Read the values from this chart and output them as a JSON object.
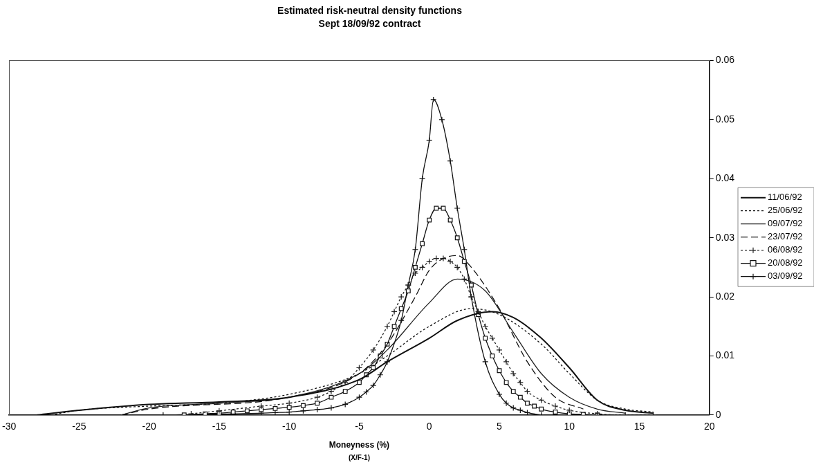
{
  "chart_data": {
    "type": "line",
    "title": "Estimated risk-neutral density functions",
    "subtitle": "Sept 18/09/92 contract",
    "xlabel": "Moneyness (%)",
    "annotations": [
      "(X/F-1)"
    ],
    "xlim": [
      -30,
      20
    ],
    "xticks": [
      -30,
      -25,
      -20,
      -15,
      -10,
      -5,
      0,
      5,
      10,
      15,
      20
    ],
    "ylim": [
      0,
      0.06
    ],
    "yticks": [
      0,
      0.01,
      0.02,
      0.03,
      0.04,
      0.05,
      0.06
    ],
    "grid": false,
    "legend": "right",
    "series": [
      {
        "name": "11/06/92",
        "color": "#111111",
        "line_style": "solid",
        "marker": "none",
        "x": [
          -28,
          -25,
          -20,
          -15,
          -10,
          -5,
          -3,
          0,
          2,
          4.5,
          6,
          8,
          10,
          12,
          14,
          16
        ],
        "values": [
          0,
          0.0008,
          0.0018,
          0.0022,
          0.003,
          0.006,
          0.009,
          0.013,
          0.016,
          0.0175,
          0.0165,
          0.013,
          0.008,
          0.0025,
          0.0008,
          0.0003
        ]
      },
      {
        "name": "25/06/92",
        "color": "#111111",
        "line_style": "dotted",
        "marker": "none",
        "x": [
          -27,
          -25,
          -20,
          -15,
          -10,
          -5,
          -3,
          0,
          3,
          5,
          8,
          10,
          12,
          14,
          16
        ],
        "values": [
          0,
          0.0008,
          0.0015,
          0.002,
          0.0035,
          0.007,
          0.01,
          0.015,
          0.018,
          0.017,
          0.012,
          0.007,
          0.0025,
          0.001,
          0.0005
        ]
      },
      {
        "name": "09/07/92",
        "color": "#222222",
        "line_style": "solid",
        "marker": "none",
        "x": [
          -22,
          -20,
          -15,
          -10,
          -5,
          -3,
          0,
          2,
          4,
          6,
          8,
          10,
          12,
          14
        ],
        "values": [
          0,
          0.0012,
          0.002,
          0.003,
          0.007,
          0.011,
          0.019,
          0.023,
          0.021,
          0.014,
          0.007,
          0.003,
          0.001,
          0.0003
        ]
      },
      {
        "name": "23/07/92",
        "color": "#111111",
        "line_style": "dashed",
        "marker": "none",
        "x": [
          -22,
          -20,
          -10,
          -5,
          -3,
          -1,
          0,
          1,
          2,
          3,
          5,
          7,
          9,
          11
        ],
        "values": [
          0,
          0.001,
          0.003,
          0.007,
          0.012,
          0.02,
          0.0245,
          0.0265,
          0.027,
          0.025,
          0.018,
          0.009,
          0.003,
          0.001
        ]
      },
      {
        "name": "06/08/92",
        "color": "#222222",
        "line_style": "dotted",
        "marker": "cross",
        "x": [
          -17,
          -15,
          -12,
          -10,
          -8,
          -7,
          -6,
          -5,
          -4,
          -3,
          -2.5,
          -2,
          -1.5,
          -1,
          -0.5,
          0,
          0.5,
          1,
          1.5,
          2,
          2.5,
          3,
          3.5,
          4,
          4.5,
          5,
          5.5,
          6,
          6.5,
          7,
          8,
          9,
          10,
          12,
          14,
          16
        ],
        "values": [
          0.0002,
          0.0007,
          0.0015,
          0.002,
          0.003,
          0.004,
          0.0055,
          0.008,
          0.011,
          0.015,
          0.0175,
          0.02,
          0.022,
          0.024,
          0.025,
          0.026,
          0.0265,
          0.0265,
          0.026,
          0.025,
          0.023,
          0.02,
          0.0175,
          0.015,
          0.013,
          0.011,
          0.009,
          0.007,
          0.0055,
          0.004,
          0.0025,
          0.0015,
          0.0008,
          0.0002,
          0,
          0
        ]
      },
      {
        "name": "20/08/92",
        "color": "#111111",
        "line_style": "solid",
        "marker": "square",
        "x": [
          -17.5,
          -16,
          -15,
          -14,
          -13,
          -12,
          -11,
          -10,
          -9,
          -8,
          -7,
          -6,
          -5,
          -4.5,
          -4,
          -3.5,
          -3,
          -2.5,
          -2,
          -1.5,
          -1,
          -0.5,
          0,
          0.5,
          1,
          1.5,
          2,
          2.5,
          3,
          3.5,
          4,
          4.5,
          5,
          5.5,
          6,
          6.5,
          7,
          7.5,
          8,
          9,
          10,
          11,
          12
        ],
        "values": [
          0,
          0.0002,
          0.0003,
          0.0005,
          0.0007,
          0.0009,
          0.0011,
          0.0013,
          0.0016,
          0.002,
          0.003,
          0.004,
          0.0055,
          0.0068,
          0.008,
          0.01,
          0.012,
          0.015,
          0.018,
          0.021,
          0.025,
          0.029,
          0.033,
          0.035,
          0.035,
          0.033,
          0.03,
          0.026,
          0.022,
          0.017,
          0.013,
          0.01,
          0.0075,
          0.0055,
          0.004,
          0.003,
          0.002,
          0.0015,
          0.001,
          0.0005,
          0.0002,
          0.0001,
          0
        ]
      },
      {
        "name": "03/09/92",
        "color": "#111111",
        "line_style": "solid",
        "marker": "cross",
        "x": [
          -19,
          -16,
          -14,
          -12,
          -11,
          -10,
          -9,
          -8,
          -7,
          -6,
          -5,
          -4.5,
          -4,
          -3.5,
          -3,
          -2,
          -1.5,
          -1,
          -0.5,
          0,
          0.3,
          0.9,
          1.5,
          2,
          2.5,
          3,
          4,
          5,
          5.5,
          6,
          6.5,
          7,
          8
        ],
        "values": [
          0,
          0.0001,
          0.0002,
          0.0003,
          0.0004,
          0.0005,
          0.0007,
          0.0009,
          0.0012,
          0.0018,
          0.003,
          0.0039,
          0.005,
          0.0068,
          0.009,
          0.016,
          0.022,
          0.028,
          0.04,
          0.0465,
          0.0534,
          0.05,
          0.043,
          0.035,
          0.028,
          0.02,
          0.009,
          0.0035,
          0.002,
          0.0012,
          0.0008,
          0.0004,
          0
        ]
      }
    ]
  }
}
